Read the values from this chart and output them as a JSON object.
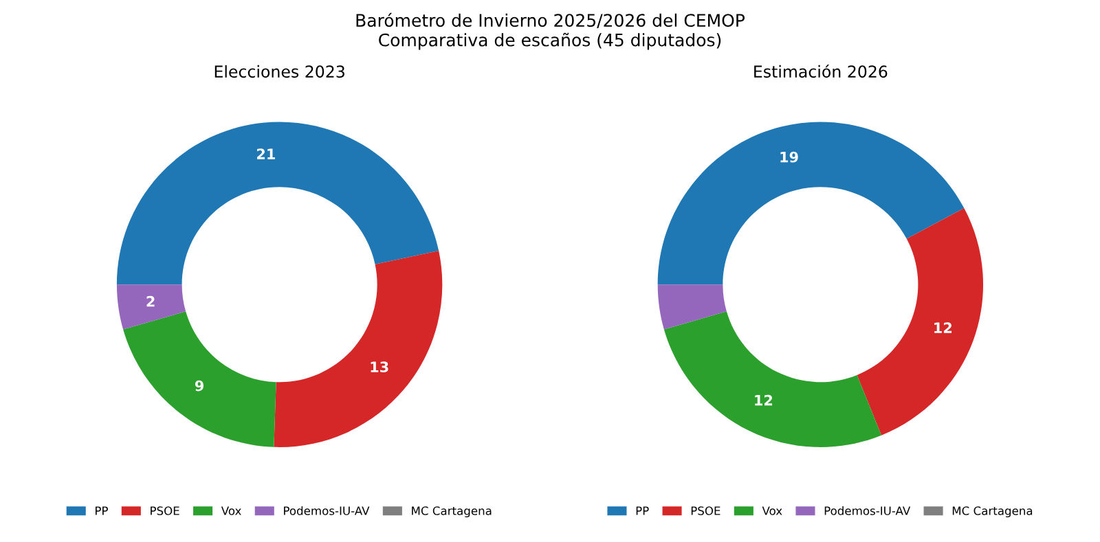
{
  "chart_data": [
    {
      "type": "donut",
      "title": "Elecciones 2023",
      "annotations": [
        "Barómetro de Invierno 2025/2026 del CEMOP\nComparativa de escaños (45 diputados)"
      ],
      "legend": "bottom",
      "categories": [
        "PP",
        "PSOE",
        "Vox",
        "Podemos-IU-AV",
        "MC Cartagena"
      ],
      "values": [
        21,
        13,
        9,
        2,
        0
      ],
      "colors": [
        "#1f77b4",
        "#d62728",
        "#2ca02c",
        "#9467bd",
        "#7f7f7f"
      ],
      "value_labels": [
        "21",
        "13",
        "9",
        "2",
        null
      ]
    },
    {
      "type": "donut",
      "title": "Estimación 2026",
      "legend": "bottom",
      "categories": [
        "PP",
        "PSOE",
        "Vox",
        "Podemos-IU-AV",
        "MC Cartagena"
      ],
      "values": [
        19,
        12,
        12,
        2,
        0
      ],
      "colors": [
        "#1f77b4",
        "#d62728",
        "#2ca02c",
        "#9467bd",
        "#7f7f7f"
      ],
      "value_labels": [
        "19",
        "12",
        "12",
        null,
        null
      ]
    }
  ]
}
